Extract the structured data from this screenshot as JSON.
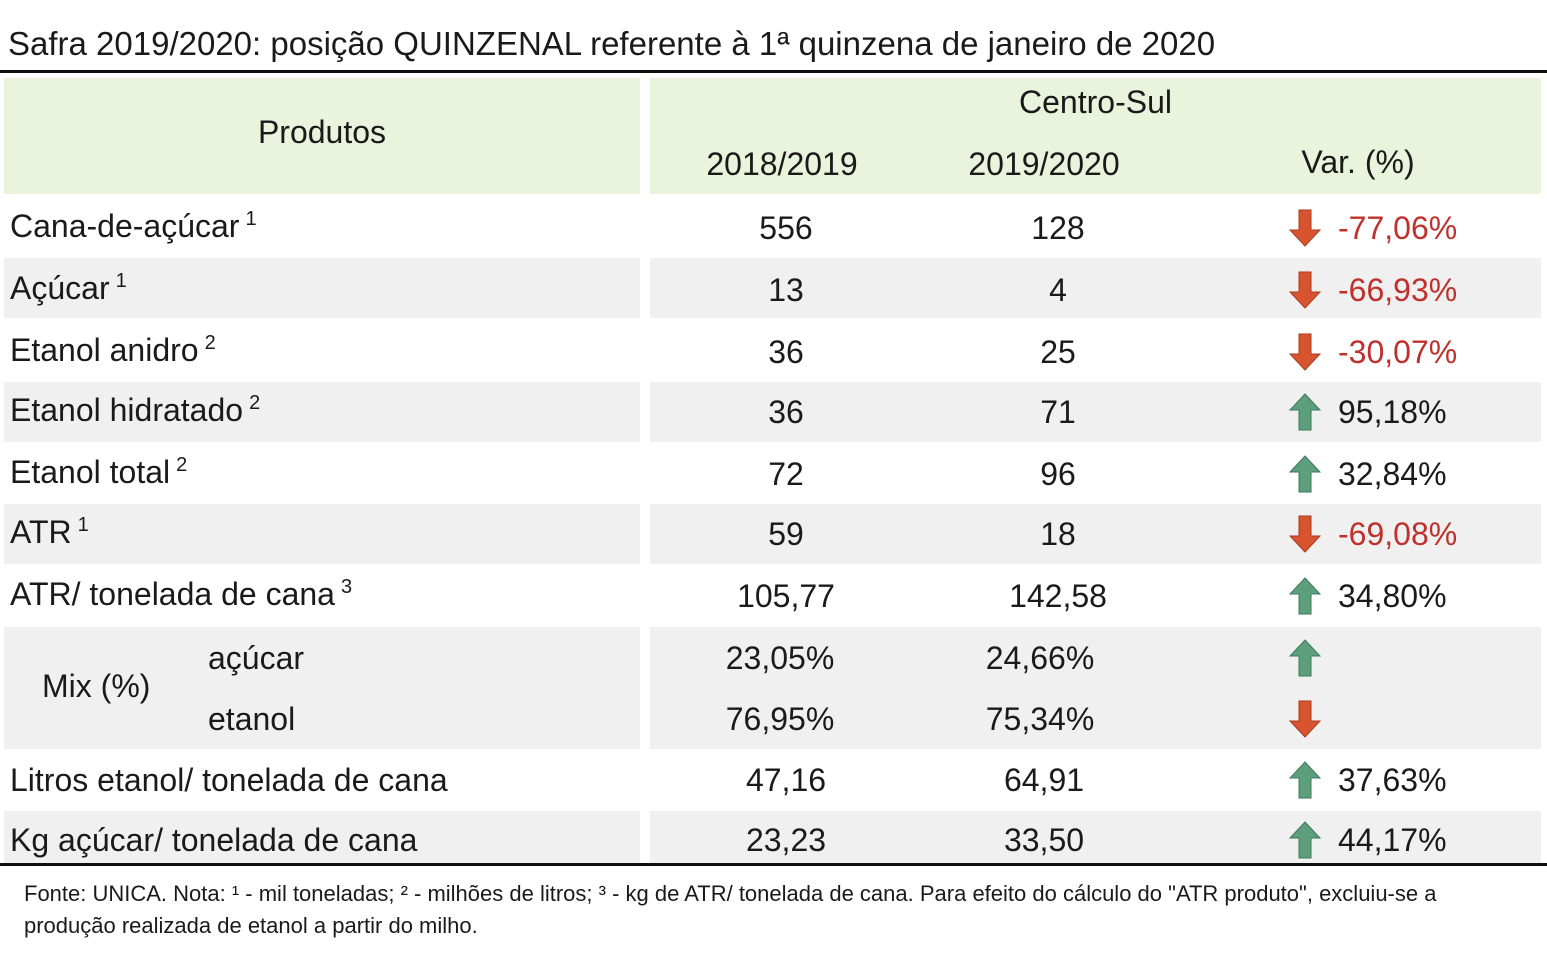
{
  "title": "Safra 2019/2020: posição QUINZENAL referente à 1ª quinzena de janeiro de 2020",
  "header": {
    "produtos": "Produtos",
    "region": "Centro-Sul",
    "col_prev": "2018/2019",
    "col_curr": "2019/2020",
    "col_var": "Var. (%)"
  },
  "rows": [
    {
      "label": "Cana-de-açúcar",
      "note": "1",
      "prev": "556",
      "curr": "128",
      "trend": "down",
      "var": "-77,06%"
    },
    {
      "label": "Açúcar",
      "note": "1",
      "prev": "13",
      "curr": "4",
      "trend": "down",
      "var": "-66,93%"
    },
    {
      "label": "Etanol anidro",
      "note": "2",
      "prev": "36",
      "curr": "25",
      "trend": "down",
      "var": "-30,07%"
    },
    {
      "label": "Etanol hidratado",
      "note": "2",
      "prev": "36",
      "curr": "71",
      "trend": "up",
      "var": "95,18%"
    },
    {
      "label": "Etanol total",
      "note": "2",
      "prev": "72",
      "curr": "96",
      "trend": "up",
      "var": "32,84%"
    },
    {
      "label": "ATR",
      "note": "1",
      "prev": "59",
      "curr": "18",
      "trend": "down",
      "var": "-69,08%"
    },
    {
      "label": "ATR/ tonelada de cana",
      "note": "3",
      "prev": "105,77",
      "curr": "142,58",
      "trend": "up",
      "var": "34,80%"
    }
  ],
  "mix": {
    "label": "Mix (%)",
    "items": [
      {
        "label": "açúcar",
        "prev": "23,05%",
        "curr": "24,66%",
        "trend": "up"
      },
      {
        "label": "etanol",
        "prev": "76,95%",
        "curr": "75,34%",
        "trend": "down"
      }
    ]
  },
  "rows_after": [
    {
      "label": "Litros etanol/ tonelada de cana",
      "prev": "47,16",
      "curr": "64,91",
      "trend": "up",
      "var": "37,63%"
    },
    {
      "label": "Kg açúcar/ tonelada de cana",
      "prev": "23,23",
      "curr": "33,50",
      "trend": "up",
      "var": "44,17%"
    }
  ],
  "footnote": "Fonte: UNICA. Nota: ¹ - mil toneladas; ² - milhões de litros; ³ - kg de ATR/ tonelada de cana. Para efeito do cálculo do \"ATR produto\", excluiu-se a produção realizada de etanol a partir do milho.",
  "colors": {
    "header_bg": "#eaf3dc",
    "stripe_bg": "#f0f0f0",
    "up_arrow": "#5d9e7c",
    "down_arrow": "#d8542f",
    "negative_text": "#c0302c"
  },
  "icons": {
    "up": "arrow-up-icon",
    "down": "arrow-down-icon"
  }
}
